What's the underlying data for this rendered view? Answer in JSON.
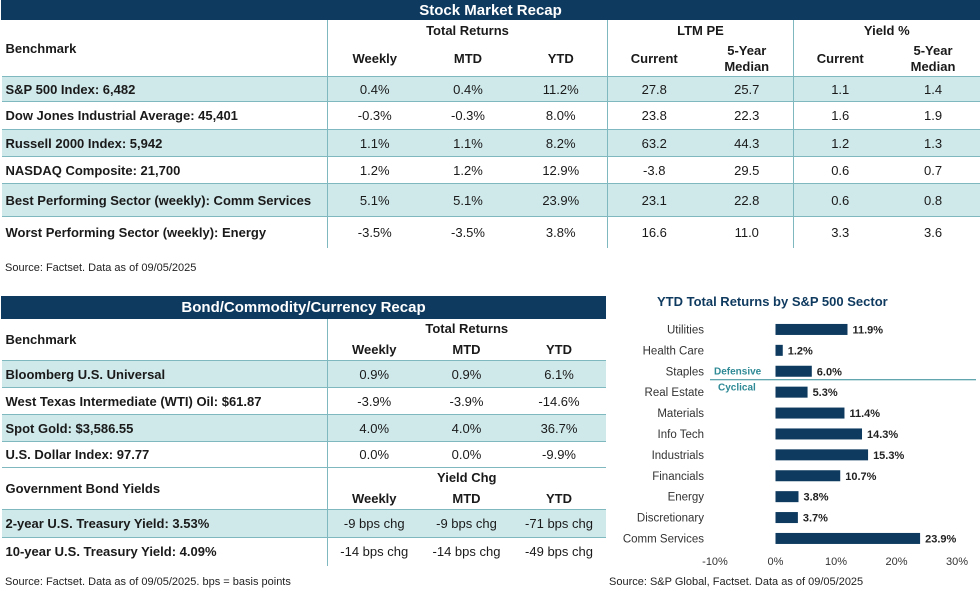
{
  "stock": {
    "title": "Stock Market Recap",
    "benchmark_label": "Benchmark",
    "group_returns": "Total Returns",
    "group_pe": "LTM PE",
    "group_yield": "Yield %",
    "col_weekly": "Weekly",
    "col_mtd": "MTD",
    "col_ytd": "YTD",
    "col_current": "Current",
    "col_median_1": "5-Year",
    "col_median_2": "Median",
    "rows": [
      {
        "name": "S&P 500 Index: 6,482",
        "weekly": "0.4%",
        "mtd": "0.4%",
        "ytd": "11.2%",
        "pe_cur": "27.8",
        "pe_med": "25.7",
        "y_cur": "1.1",
        "y_med": "1.4"
      },
      {
        "name": "Dow Jones Industrial Average: 45,401",
        "weekly": "-0.3%",
        "mtd": "-0.3%",
        "ytd": "8.0%",
        "pe_cur": "23.8",
        "pe_med": "22.3",
        "y_cur": "1.6",
        "y_med": "1.9"
      },
      {
        "name": "Russell 2000 Index: 5,942",
        "weekly": "1.1%",
        "mtd": "1.1%",
        "ytd": "8.2%",
        "pe_cur": "63.2",
        "pe_med": "44.3",
        "y_cur": "1.2",
        "y_med": "1.3"
      },
      {
        "name": "NASDAQ Composite: 21,700",
        "weekly": "1.2%",
        "mtd": "1.2%",
        "ytd": "12.9%",
        "pe_cur": "-3.8",
        "pe_med": "29.5",
        "y_cur": "0.6",
        "y_med": "0.7"
      },
      {
        "name": "Best Performing Sector (weekly): Comm Services",
        "weekly": "5.1%",
        "mtd": "5.1%",
        "ytd": "23.9%",
        "pe_cur": "23.1",
        "pe_med": "22.8",
        "y_cur": "0.6",
        "y_med": "0.8"
      },
      {
        "name": "Worst Performing Sector (weekly): Energy",
        "weekly": "-3.5%",
        "mtd": "-3.5%",
        "ytd": "3.8%",
        "pe_cur": "16.6",
        "pe_med": "11.0",
        "y_cur": "3.3",
        "y_med": "3.6"
      }
    ],
    "source": "Source: Factset. Data as of 09/05/2025"
  },
  "bond": {
    "title": "Bond/Commodity/Currency Recap",
    "benchmark_label": "Benchmark",
    "group_returns": "Total Returns",
    "col_weekly": "Weekly",
    "col_mtd": "MTD",
    "col_ytd": "YTD",
    "rows": [
      {
        "name": "Bloomberg U.S. Universal",
        "weekly": "0.9%",
        "mtd": "0.9%",
        "ytd": "6.1%"
      },
      {
        "name": "West Texas Intermediate (WTI) Oil: $61.87",
        "weekly": "-3.9%",
        "mtd": "-3.9%",
        "ytd": "-14.6%"
      },
      {
        "name": "Spot Gold: $3,586.55",
        "weekly": "4.0%",
        "mtd": "4.0%",
        "ytd": "36.7%"
      },
      {
        "name": "U.S. Dollar Index: 97.77",
        "weekly": "0.0%",
        "mtd": "0.0%",
        "ytd": "-9.9%"
      }
    ],
    "gov_label": "Government Bond Yields",
    "group_yield_chg": "Yield Chg",
    "gov_rows": [
      {
        "name": "2-year U.S. Treasury Yield: 3.53%",
        "weekly": "-9 bps chg",
        "mtd": "-9 bps chg",
        "ytd": "-71 bps chg"
      },
      {
        "name": "10-year U.S. Treasury Yield: 4.09%",
        "weekly": "-14 bps chg",
        "mtd": "-14 bps chg",
        "ytd": "-49 bps chg"
      }
    ],
    "source": "Source: Factset. Data as of 09/05/2025. bps = basis points"
  },
  "colors": {
    "navy": "#0f3a5f",
    "teal_fill": "#cfe8ea",
    "teal_line": "#7fb9bf"
  },
  "chart_data": {
    "type": "bar",
    "orientation": "horizontal",
    "title": "YTD Total Returns by S&P 500 Sector",
    "categories": [
      "Utilities",
      "Health Care",
      "Staples",
      "Real Estate",
      "Materials",
      "Info Tech",
      "Industrials",
      "Financials",
      "Energy",
      "Discretionary",
      "Comm Services"
    ],
    "values": [
      11.9,
      1.2,
      6.0,
      5.3,
      11.4,
      14.3,
      15.3,
      10.7,
      3.8,
      3.7,
      23.9
    ],
    "data_labels": [
      "11.9%",
      "1.2%",
      "6.0%",
      "5.3%",
      "11.4%",
      "14.3%",
      "15.3%",
      "10.7%",
      "3.8%",
      "3.7%",
      "23.9%"
    ],
    "xlim": [
      -10,
      30
    ],
    "xticks": [
      -10,
      0,
      10,
      20,
      30
    ],
    "xtick_labels": [
      "-10%",
      "0%",
      "10%",
      "20%",
      "30%"
    ],
    "annotations": [
      "Defensive",
      "Cyclical"
    ],
    "divider_after": "Staples",
    "bar_color": "#0f3a5f",
    "grid": false,
    "source": "Source: S&P Global, Factset. Data as of 09/05/2025"
  }
}
